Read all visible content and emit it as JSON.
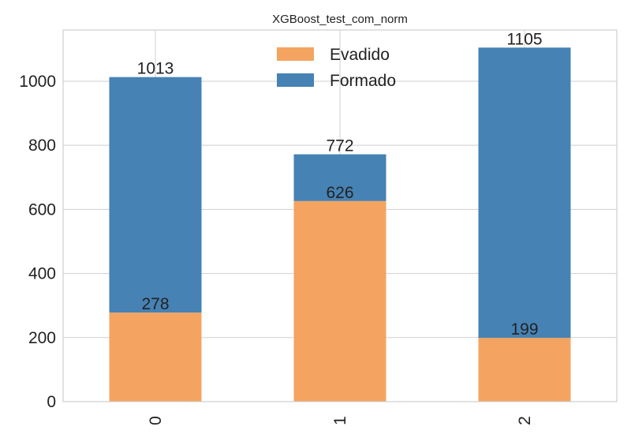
{
  "chart_data": {
    "type": "bar",
    "stacked": true,
    "title": "XGBoost_test_com_norm",
    "xlabel": "",
    "ylabel": "",
    "categories": [
      "0",
      "1",
      "2"
    ],
    "series": [
      {
        "name": "Evadido",
        "values": [
          278,
          626,
          199
        ],
        "color": "#f4a460"
      },
      {
        "name": "Formado",
        "values": [
          735,
          146,
          906
        ],
        "color": "#4682b4"
      }
    ],
    "totals": [
      1013,
      772,
      1105
    ],
    "segment_labels": [
      [
        "278",
        "626",
        "199"
      ],
      [
        "1013",
        "772",
        "1105"
      ]
    ],
    "ylim": [
      0,
      1160
    ],
    "yticks": [
      0,
      200,
      400,
      600,
      800,
      1000
    ],
    "grid": true,
    "legend_position": "top-center",
    "xtick_rotation": 90
  }
}
